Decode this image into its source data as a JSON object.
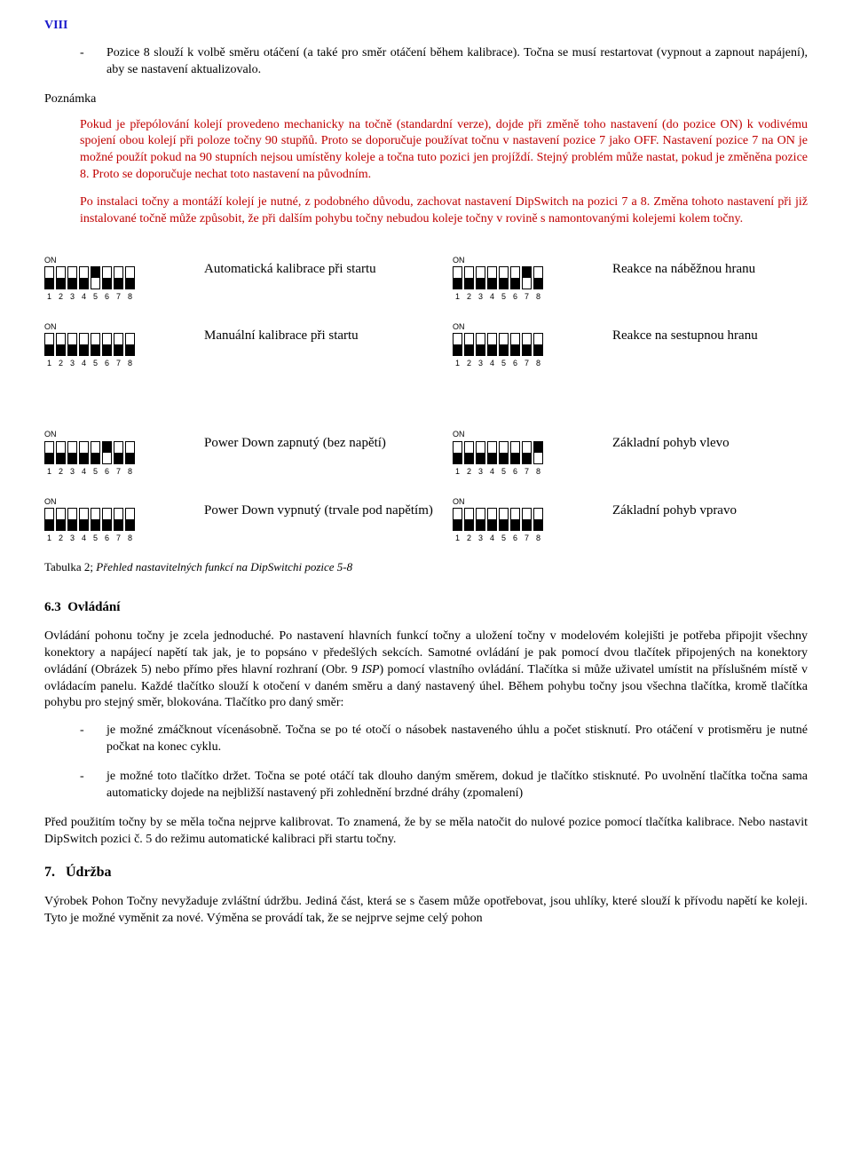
{
  "roman": "VIII",
  "bullet": {
    "dash": "-",
    "text": "Pozice 8 slouží k volbě směru otáčení (a také pro směr otáčení během kalibrace). Točna se musí restartovat (vypnout a zapnout napájení), aby se nastavení aktualizovalo."
  },
  "noteLabel": "Poznámka",
  "redPara1": "Pokud je přepólování kolejí provedeno mechanicky na točně (standardní verze), dojde při změně toho nastavení (do pozice ON) k vodivému spojení obou kolejí při poloze točny 90 stupňů. Proto se doporučuje používat točnu v nastavení pozice 7 jako OFF. Nastavení pozice 7 na ON je možné použít pokud na 90 stupních nejsou umístěny koleje a točna tuto pozici jen projíždí. Stejný problém může nastat, pokud je změněna pozice 8. Proto se doporučuje nechat toto nastavení na původním.",
  "redPara2": "Po instalaci točny a montáží kolejí je nutné, z podobného důvodu, zachovat nastavení DipSwitch na pozici 7 a 8. Změna tohoto nastavení při již instalované točně může způsobit, že při dalším pohybu točny nebudou koleje točny v rovině s namontovanými kolejemi kolem točny.",
  "dip": {
    "onLabel": "ON",
    "numbers": [
      "1",
      "2",
      "3",
      "4",
      "5",
      "6",
      "7",
      "8"
    ],
    "rows": [
      [
        {
          "on": [
            0,
            0,
            0,
            0,
            1,
            0,
            0,
            0
          ],
          "desc": "Automatická kalibrace při startu"
        },
        {
          "on": [
            0,
            0,
            0,
            0,
            0,
            0,
            1,
            0
          ],
          "desc": "Reakce na náběžnou hranu"
        }
      ],
      [
        {
          "on": [
            0,
            0,
            0,
            0,
            0,
            0,
            0,
            0
          ],
          "desc": "Manuální kalibrace při startu"
        },
        {
          "on": [
            0,
            0,
            0,
            0,
            0,
            0,
            0,
            0
          ],
          "desc": "Reakce na sestupnou hranu"
        }
      ],
      [
        {
          "on": [
            0,
            0,
            0,
            0,
            0,
            1,
            0,
            0
          ],
          "desc": "Power Down zapnutý (bez napětí)"
        },
        {
          "on": [
            0,
            0,
            0,
            0,
            0,
            0,
            0,
            1
          ],
          "desc": "Základní pohyb vlevo"
        }
      ],
      [
        {
          "on": [
            0,
            0,
            0,
            0,
            0,
            0,
            0,
            0
          ],
          "desc": "Power Down vypnutý (trvale pod napětím)"
        },
        {
          "on": [
            0,
            0,
            0,
            0,
            0,
            0,
            0,
            0
          ],
          "desc": "Základní pohyb vpravo"
        }
      ]
    ]
  },
  "tableCaption": {
    "prefix": "Tabulka 2; ",
    "ital": "Přehled nastavitelných funkcí na DipSwitchi pozice 5-8"
  },
  "section63": {
    "num": "6.3",
    "title": "Ovládání"
  },
  "para63a": "Ovládání pohonu točny je zcela jednoduché. Po nastavení hlavních funkcí točny a uložení točny v modelovém kolejišti je potřeba připojit všechny konektory a napájecí napětí tak jak, je to popsáno v předešlých sekcích. Samotné ovládání je pak pomocí dvou tlačítek připojených na konektory ovládání (Obrázek 5) nebo přímo přes hlavní rozhraní (Obr. 9 ",
  "para63a_ital": "ISP",
  "para63a_end": ") pomocí vlastního ovládání. Tlačítka si může uživatel umístit na příslušném místě v ovládacím panelu. Každé tlačítko slouží k otočení v daném směru a daný nastavený úhel. Během pohybu točny jsou všechna tlačítka, kromě tlačítka pohybu pro stejný směr, blokována. Tlačítko pro daný směr:",
  "bullets63": [
    "je možné zmáčknout vícenásobně. Točna se po té otočí o násobek nastaveného úhlu a počet stisknutí. Pro otáčení v protisměru je nutné počkat na konec cyklu.",
    "je možné toto tlačítko držet. Točna se poté otáčí tak dlouho daným směrem, dokud je tlačítko stisknuté. Po uvolnění tlačítka točna sama automaticky dojede na nejbližší nastavený při zohlednění brzdné dráhy (zpomalení)"
  ],
  "para63b": "Před použitím točny by se měla točna nejprve kalibrovat. To znamená, že by se měla natočit do nulové pozice pomocí tlačítka kalibrace. Nebo nastavit DipSwitch pozici č. 5 do režimu automatické kalibraci při startu točny.",
  "section7": {
    "num": "7.",
    "title": "Údržba"
  },
  "para7": "Výrobek Pohon Točny nevyžaduje zvláštní údržbu. Jediná část, která se s časem může opotřebovat, jsou uhlíky, které slouží k přívodu napětí ke koleji. Tyto je možné vyměnit za nové. Výměna se provádí tak, že se nejprve sejme celý pohon"
}
